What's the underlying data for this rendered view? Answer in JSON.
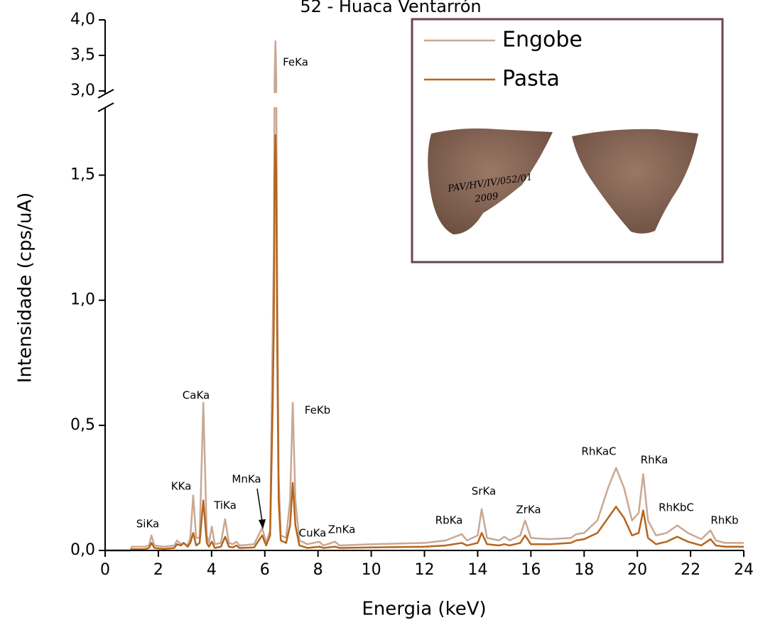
{
  "chart_data": {
    "type": "line",
    "title": "52 - Huaca Ventarrón",
    "x_label": "Energia (keV)",
    "y_label": "Intensidade (cps/uA)",
    "xlim": [
      0,
      24
    ],
    "xticks": [
      0,
      2,
      4,
      6,
      8,
      10,
      12,
      14,
      16,
      18,
      20,
      22,
      24
    ],
    "ylim": [
      0,
      4.0
    ],
    "ybreak": [
      1.76,
      3.0
    ],
    "yticks": [
      {
        "value": 0,
        "label": "0,0"
      },
      {
        "value": 0.5,
        "label": "0,5"
      },
      {
        "value": 1.0,
        "label": "1,0"
      },
      {
        "value": 1.5,
        "label": "1,5"
      },
      {
        "value": 3.0,
        "label": "3,0"
      },
      {
        "value": 3.5,
        "label": "3,5"
      },
      {
        "value": 4.0,
        "label": "4,0"
      }
    ],
    "legend": "top-right",
    "x": [
      0,
      0.95,
      1.0,
      1.5,
      1.65,
      1.74,
      1.85,
      2.2,
      2.6,
      2.7,
      2.85,
      2.95,
      3.1,
      3.2,
      3.31,
      3.42,
      3.55,
      3.69,
      3.82,
      3.9,
      4.01,
      4.12,
      4.35,
      4.51,
      4.65,
      4.8,
      4.93,
      5.05,
      5.6,
      5.9,
      6.05,
      6.2,
      6.3,
      6.34,
      6.37,
      6.4,
      6.43,
      6.46,
      6.52,
      6.6,
      6.8,
      6.95,
      7.05,
      7.15,
      7.3,
      7.6,
      8.05,
      8.2,
      8.64,
      8.8,
      10,
      12,
      12.8,
      13.4,
      13.6,
      14.0,
      14.15,
      14.35,
      14.8,
      15.0,
      15.2,
      15.6,
      15.78,
      16.0,
      16.7,
      17.5,
      17.7,
      18.0,
      18.5,
      18.9,
      19.2,
      19.5,
      19.8,
      20.05,
      20.22,
      20.4,
      20.7,
      21.1,
      21.5,
      21.9,
      22.4,
      22.75,
      22.95,
      23.3,
      24
    ],
    "series": [
      {
        "name": "Engobe",
        "color": "#c9a893",
        "values": [
          0,
          0,
          0.015,
          0.015,
          0.02,
          0.06,
          0.02,
          0.015,
          0.02,
          0.04,
          0.025,
          0.03,
          0.02,
          0.05,
          0.22,
          0.05,
          0.05,
          0.59,
          0.06,
          0.03,
          0.095,
          0.025,
          0.03,
          0.125,
          0.03,
          0.025,
          0.035,
          0.02,
          0.025,
          0.09,
          0.03,
          0.08,
          0.9,
          1.2,
          3.2,
          3.7,
          3.2,
          1.2,
          0.3,
          0.06,
          0.05,
          0.2,
          0.59,
          0.2,
          0.04,
          0.025,
          0.035,
          0.02,
          0.035,
          0.02,
          0.025,
          0.03,
          0.04,
          0.065,
          0.04,
          0.06,
          0.165,
          0.05,
          0.04,
          0.055,
          0.04,
          0.06,
          0.12,
          0.05,
          0.045,
          0.05,
          0.065,
          0.07,
          0.12,
          0.25,
          0.33,
          0.25,
          0.12,
          0.15,
          0.305,
          0.12,
          0.06,
          0.07,
          0.1,
          0.07,
          0.045,
          0.08,
          0.04,
          0.03,
          0.03
        ]
      },
      {
        "name": "Pasta",
        "color": "#b5651d",
        "values": [
          0,
          0,
          0.005,
          0.005,
          0.01,
          0.03,
          0.01,
          0.006,
          0.01,
          0.025,
          0.02,
          0.03,
          0.015,
          0.03,
          0.07,
          0.02,
          0.03,
          0.2,
          0.03,
          0.015,
          0.035,
          0.01,
          0.015,
          0.055,
          0.015,
          0.012,
          0.02,
          0.01,
          0.012,
          0.06,
          0.02,
          0.06,
          0.6,
          0.9,
          1.5,
          1.66,
          1.5,
          0.9,
          0.2,
          0.04,
          0.03,
          0.1,
          0.27,
          0.1,
          0.02,
          0.01,
          0.015,
          0.01,
          0.015,
          0.01,
          0.012,
          0.015,
          0.02,
          0.03,
          0.02,
          0.03,
          0.07,
          0.025,
          0.02,
          0.025,
          0.02,
          0.03,
          0.06,
          0.025,
          0.025,
          0.03,
          0.04,
          0.045,
          0.07,
          0.13,
          0.175,
          0.13,
          0.06,
          0.07,
          0.16,
          0.05,
          0.025,
          0.035,
          0.055,
          0.035,
          0.02,
          0.045,
          0.02,
          0.015,
          0.015
        ]
      }
    ],
    "annotations": [
      "SiKa",
      "KKa",
      "CaKa",
      "TiKa",
      "MnKa",
      "FeKa",
      "FeKb",
      "CuKa",
      "ZnKa",
      "RbKa",
      "SrKa",
      "ZrKa",
      "RhKaC",
      "RhKa",
      "RhKbC",
      "RhKb"
    ],
    "inset_photo_text": [
      "PAV/HV/IV/052/01",
      "2009"
    ]
  }
}
